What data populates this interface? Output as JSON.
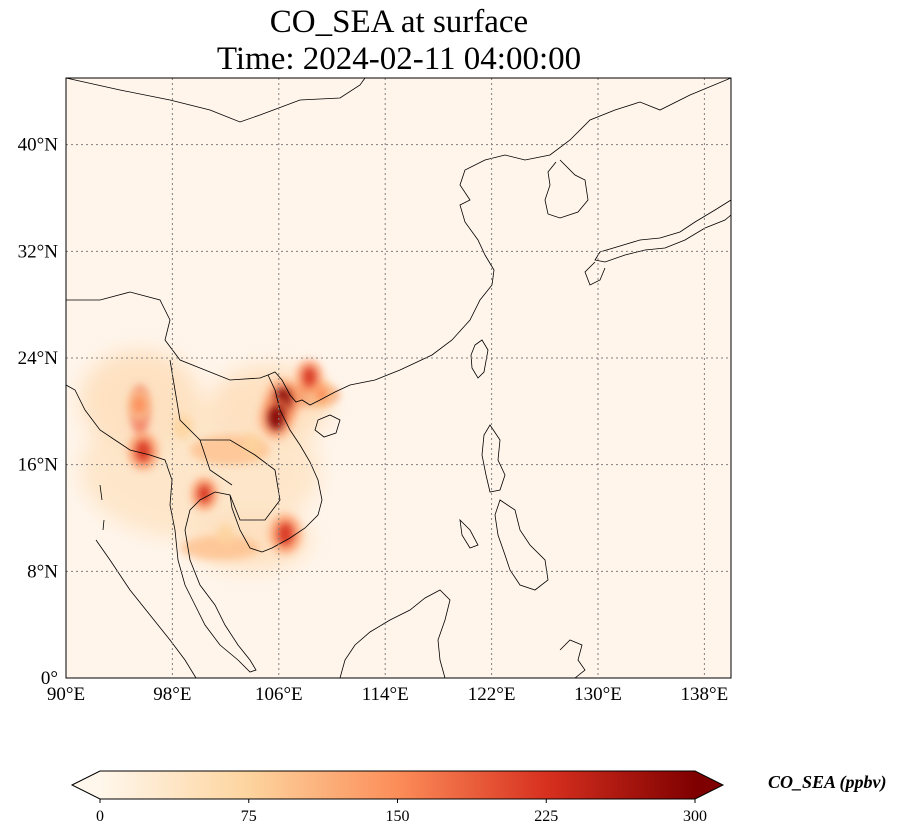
{
  "title": {
    "line1": "CO_SEA at surface",
    "line2": "Time: 2024-02-11 04:00:00"
  },
  "map": {
    "lon_range": [
      90,
      140
    ],
    "lat_range": [
      0,
      45
    ],
    "lon_ticks": [
      "90°E",
      "98°E",
      "106°E",
      "114°E",
      "122°E",
      "130°E",
      "138°E"
    ],
    "lat_ticks": [
      "0°",
      "8°N",
      "16°N",
      "24°N",
      "32°N",
      "40°N"
    ],
    "background_color": "#fff5eb",
    "coastline_color": "#000000",
    "gridline_style": "dotted",
    "gridline_color": "#808080"
  },
  "colorbar": {
    "label": "CO_SEA (ppbv)",
    "ticks": [
      "0",
      "75",
      "150",
      "225",
      "300"
    ],
    "range": [
      0,
      300
    ],
    "colormap": "OrRd",
    "colors": [
      "#fff7ec",
      "#fdd49e",
      "#fc8d59",
      "#d7301f",
      "#7f0000"
    ],
    "extend": "both"
  },
  "chart_data": {
    "type": "heatmap",
    "title": "CO_SEA at surface\nTime: 2024-02-11 04:00:00",
    "xlabel": "",
    "ylabel": "",
    "xlim": [
      90,
      140
    ],
    "ylim": [
      0,
      45
    ],
    "grid": true,
    "hotspots": [
      {
        "lon": 106.3,
        "lat": 20.8,
        "value": 300
      },
      {
        "lon": 105.8,
        "lat": 19.5,
        "value": 280
      },
      {
        "lon": 106.5,
        "lat": 10.8,
        "value": 260
      },
      {
        "lon": 95.8,
        "lat": 17.0,
        "value": 240
      },
      {
        "lon": 95.5,
        "lat": 20.5,
        "value": 170
      },
      {
        "lon": 109.2,
        "lat": 21.3,
        "value": 150
      },
      {
        "lon": 108.3,
        "lat": 22.6,
        "value": 200
      },
      {
        "lon": 100.4,
        "lat": 13.8,
        "value": 190
      },
      {
        "lon": 98.8,
        "lat": 18.8,
        "value": 110
      },
      {
        "lon": 104.0,
        "lat": 17.5,
        "value": 90
      },
      {
        "lon": 102.0,
        "lat": 10.8,
        "value": 70
      }
    ]
  }
}
